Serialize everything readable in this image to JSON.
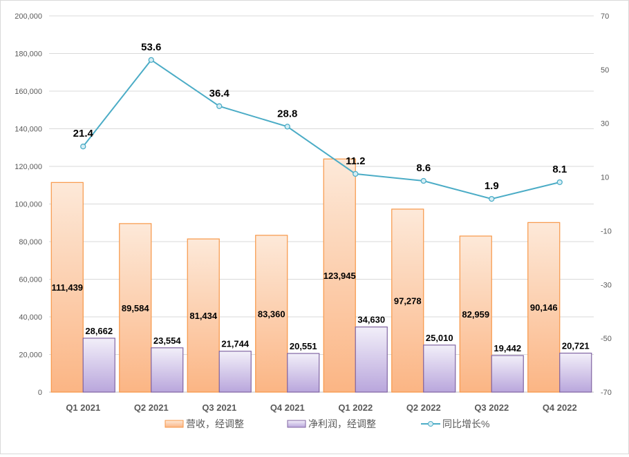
{
  "chart_data": {
    "type": "bar+line",
    "categories": [
      "Q1 2021",
      "Q2 2021",
      "Q3 2021",
      "Q4 2021",
      "Q1 2022",
      "Q2 2022",
      "Q3 2022",
      "Q4 2022"
    ],
    "series": [
      {
        "name": "营收，经调整",
        "type": "bar",
        "axis": "left",
        "color": "#f79646",
        "values": [
          111439,
          89584,
          81434,
          83360,
          123945,
          97278,
          82959,
          90146
        ],
        "labels": [
          "111,439",
          "89,584",
          "81,434",
          "83,360",
          "123,945",
          "97,278",
          "82,959",
          "90,146"
        ]
      },
      {
        "name": "净利润，经调整",
        "type": "bar",
        "axis": "left",
        "color": "#8064a2",
        "values": [
          28662,
          23554,
          21744,
          20551,
          34630,
          25010,
          19442,
          20721
        ],
        "labels": [
          "28,662",
          "23,554",
          "21,744",
          "20,551",
          "34,630",
          "25,010",
          "19,442",
          "20,721"
        ]
      },
      {
        "name": "同比增长%",
        "type": "line",
        "axis": "right",
        "color": "#4bacc6",
        "values": [
          21.4,
          53.6,
          36.4,
          28.8,
          11.2,
          8.6,
          1.9,
          8.1
        ],
        "labels": [
          "21.4",
          "53.6",
          "36.4",
          "28.8",
          "11.2",
          "8.6",
          "1.9",
          "8.1"
        ]
      }
    ],
    "y_left": {
      "range": [
        0,
        200000
      ],
      "ticks": [
        "0",
        "20,000",
        "40,000",
        "60,000",
        "80,000",
        "100,000",
        "120,000",
        "140,000",
        "160,000",
        "180,000",
        "200,000"
      ]
    },
    "y_right": {
      "range": [
        -70,
        70
      ],
      "ticks": [
        "-70",
        "-50",
        "-30",
        "-10",
        "10",
        "30",
        "50",
        "70"
      ]
    },
    "grid": true,
    "legend": "bottom"
  }
}
